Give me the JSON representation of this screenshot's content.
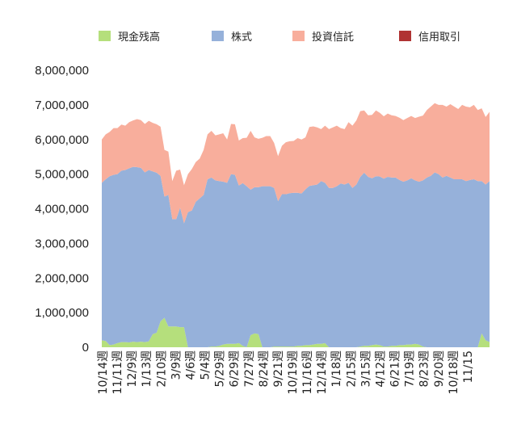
{
  "chart_data": {
    "type": "area",
    "stacked": true,
    "legend_placement": "top",
    "grid": false,
    "ylim": [
      0,
      8000000
    ],
    "y_ticks": [
      0,
      1000000,
      2000000,
      3000000,
      4000000,
      5000000,
      6000000,
      7000000,
      8000000
    ],
    "y_tick_labels": [
      "0",
      "1,000,000",
      "2,000,000",
      "3,000,000",
      "4,000,000",
      "5,000,000",
      "6,000,000",
      "7,000,000",
      "8,000,000"
    ],
    "x_tick_labels": [
      "10/14週",
      "11/11週",
      "12/9週",
      "1/13週",
      "2/10週",
      "3/9週",
      "4/6週",
      "5/4週",
      "5/29週",
      "6/29週",
      "7/27週",
      "8/24週",
      "9/21週",
      "10/19週",
      "11/16週",
      "12/14週",
      "1/18週",
      "2/15週",
      "3/15週",
      "4/12週",
      "6/21週",
      "7/19週",
      "8/23週",
      "9/20週",
      "10/18週",
      "11/15"
    ],
    "series": [
      {
        "name": "現金残高",
        "color": "#b5df7c",
        "values": [
          200000,
          180000,
          60000,
          80000,
          120000,
          150000,
          150000,
          140000,
          160000,
          150000,
          160000,
          150000,
          170000,
          380000,
          420000,
          750000,
          850000,
          600000,
          600000,
          600000,
          580000,
          580000,
          0,
          0,
          0,
          0,
          0,
          0,
          20000,
          20000,
          40000,
          80000,
          100000,
          100000,
          100000,
          120000,
          40000,
          0,
          350000,
          400000,
          380000,
          0,
          0,
          0,
          20000,
          20000,
          20000,
          20000,
          20000,
          20000,
          40000,
          40000,
          60000,
          60000,
          80000,
          100000,
          100000,
          120000,
          0,
          0,
          0,
          0,
          0,
          0,
          0,
          0,
          20000,
          40000,
          40000,
          60000,
          80000,
          60000,
          20000,
          20000,
          40000,
          40000,
          60000,
          60000,
          80000,
          80000,
          100000,
          80000,
          20000,
          0,
          0,
          0,
          0,
          0,
          0,
          0,
          0,
          0,
          0,
          0,
          0,
          0,
          0,
          400000,
          200000,
          150000
        ]
      },
      {
        "name": "株式",
        "color": "#96b1da",
        "values": [
          4550000,
          4670000,
          4880000,
          4900000,
          4880000,
          4950000,
          4970000,
          5030000,
          5050000,
          5050000,
          5020000,
          4900000,
          4950000,
          4700000,
          4620000,
          4200000,
          3500000,
          3800000,
          3100000,
          3100000,
          3450000,
          3000000,
          3900000,
          3950000,
          4200000,
          4300000,
          4400000,
          4850000,
          4880000,
          4800000,
          4760000,
          4700000,
          4650000,
          4900000,
          4880000,
          4550000,
          4700000,
          4650000,
          4200000,
          4220000,
          4240000,
          4650000,
          4650000,
          4650000,
          4580000,
          4200000,
          4400000,
          4400000,
          4430000,
          4440000,
          4420000,
          4400000,
          4500000,
          4600000,
          4600000,
          4600000,
          4700000,
          4630000,
          4600000,
          4600000,
          4650000,
          4730000,
          4700000,
          4750000,
          4600000,
          4700000,
          4900000,
          5000000,
          4880000,
          4820000,
          4860000,
          4870000,
          4850000,
          4900000,
          4860000,
          4860000,
          4770000,
          4720000,
          4740000,
          4800000,
          4720000,
          4700000,
          4800000,
          4900000,
          4950000,
          5050000,
          5000000,
          4900000,
          4950000,
          4900000,
          4850000,
          4850000,
          4850000,
          4800000,
          4830000,
          4850000,
          4800000,
          4400000,
          4500000,
          4650000
        ]
      },
      {
        "name": "投資信託",
        "color": "#f8ae9c",
        "values": [
          1250000,
          1300000,
          1280000,
          1350000,
          1330000,
          1330000,
          1280000,
          1330000,
          1340000,
          1390000,
          1380000,
          1400000,
          1420000,
          1400000,
          1400000,
          1420000,
          1350000,
          1250000,
          1100000,
          1400000,
          1100000,
          1100000,
          1100000,
          1200000,
          1150000,
          1150000,
          1300000,
          1300000,
          1350000,
          1300000,
          1350000,
          1400000,
          1250000,
          1450000,
          1460000,
          1300000,
          1300000,
          1400000,
          1700000,
          1440000,
          1400000,
          1400000,
          1450000,
          1450000,
          1300000,
          1300000,
          1400000,
          1500000,
          1500000,
          1500000,
          1580000,
          1560000,
          1500000,
          1700000,
          1700000,
          1650000,
          1500000,
          1650000,
          1700000,
          1750000,
          1750000,
          1600000,
          1600000,
          1750000,
          1800000,
          1850000,
          1900000,
          1800000,
          1780000,
          1830000,
          1900000,
          1840000,
          1800000,
          1830000,
          1800000,
          1780000,
          1800000,
          1780000,
          1800000,
          1800000,
          1800000,
          1880000,
          1870000,
          1950000,
          2000000,
          2000000,
          2000000,
          2100000,
          2000000,
          2120000,
          2100000,
          2030000,
          2150000,
          2150000,
          2100000,
          2150000,
          2050000,
          2100000,
          1950000,
          2000000
        ]
      },
      {
        "name": "信用取引",
        "color": "#b03333",
        "values": [
          0,
          0,
          0,
          0,
          0,
          0,
          0,
          0,
          0,
          0,
          0,
          0,
          0,
          0,
          0,
          0,
          0,
          0,
          0,
          0,
          0,
          0,
          0,
          0,
          0,
          0,
          0,
          0,
          0,
          0,
          0,
          0,
          0,
          0,
          0,
          0,
          0,
          0,
          0,
          0,
          0,
          0,
          0,
          0,
          0,
          0,
          0,
          0,
          0,
          0,
          0,
          0,
          0,
          0,
          0,
          0,
          0,
          0,
          0,
          0,
          0,
          0,
          0,
          0,
          0,
          0,
          0,
          0,
          0,
          0,
          0,
          0,
          0,
          0,
          0,
          0,
          0,
          0,
          0,
          0,
          0,
          0,
          0,
          0,
          0,
          0,
          0,
          0,
          0,
          0,
          0,
          0,
          0,
          0,
          0,
          0,
          0,
          0,
          0,
          0
        ]
      }
    ]
  }
}
